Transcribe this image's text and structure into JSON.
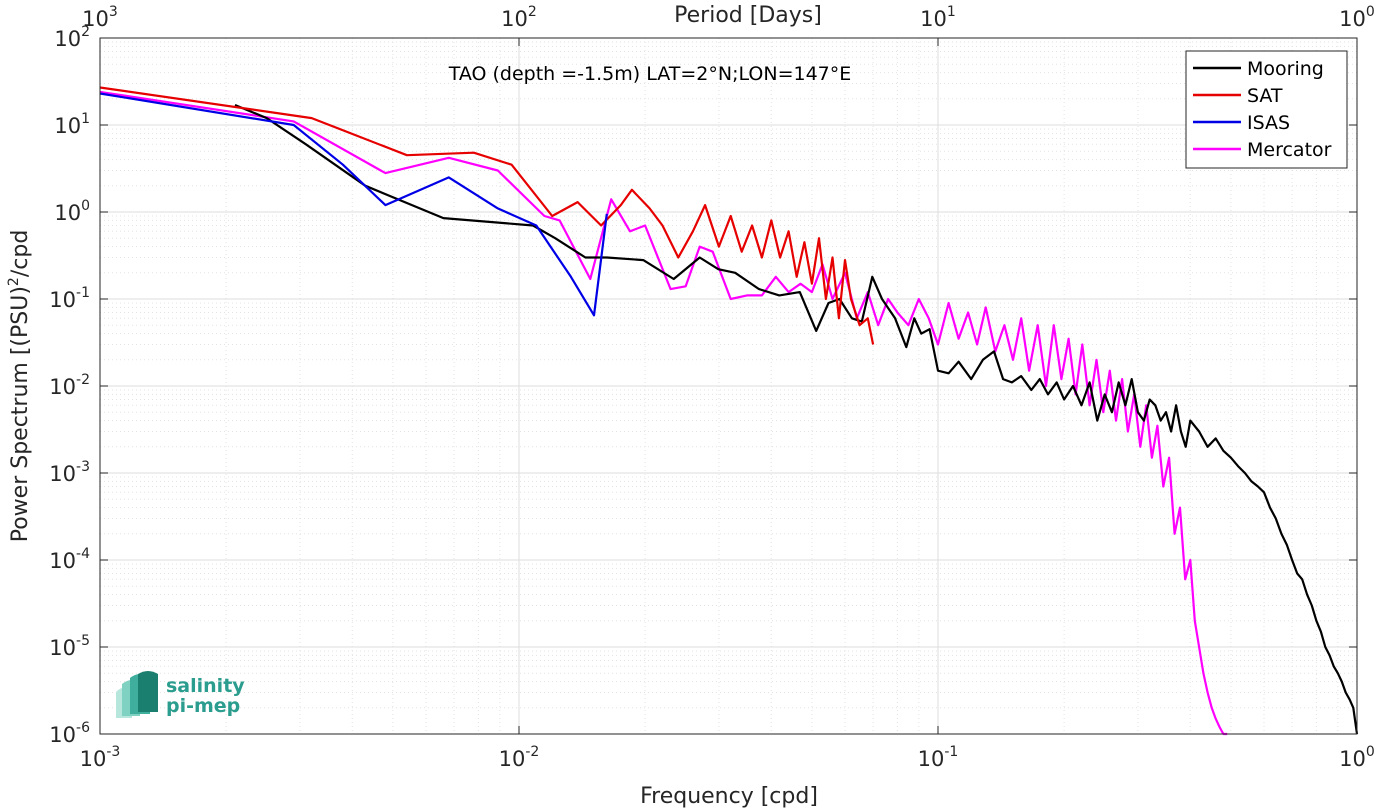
{
  "chart_data": {
    "type": "line",
    "title": "TAO (depth =-1.5m) LAT=2°N;LON=147°E",
    "xlabel": "Frequency [cpd]",
    "ylabel": "Power Spectrum [(PSU)",
    "ylabel_sup": "2",
    "ylabel_suffix": "/cpd",
    "top_xlabel": "Period [Days]",
    "x_scale": "log",
    "y_scale": "log",
    "xlim": [
      0.001,
      1
    ],
    "ylim": [
      1e-06,
      100
    ],
    "grid": true,
    "legend_position": "top-right",
    "x_ticks": [
      {
        "value": 0.001,
        "base": "10",
        "exp": "-3"
      },
      {
        "value": 0.01,
        "base": "10",
        "exp": "-2"
      },
      {
        "value": 0.1,
        "base": "10",
        "exp": "-1"
      },
      {
        "value": 1,
        "base": "10",
        "exp": "0"
      }
    ],
    "y_ticks": [
      {
        "value": 100,
        "base": "10",
        "exp": "2"
      },
      {
        "value": 10,
        "base": "10",
        "exp": "1"
      },
      {
        "value": 1,
        "base": "10",
        "exp": "0"
      },
      {
        "value": 0.1,
        "base": "10",
        "exp": "-1"
      },
      {
        "value": 0.01,
        "base": "10",
        "exp": "-2"
      },
      {
        "value": 0.001,
        "base": "10",
        "exp": "-3"
      },
      {
        "value": 0.0001,
        "base": "10",
        "exp": "-4"
      },
      {
        "value": 1e-05,
        "base": "10",
        "exp": "-5"
      },
      {
        "value": 1e-06,
        "base": "10",
        "exp": "-6"
      }
    ],
    "top_ticks": [
      {
        "value": 0.001,
        "base": "10",
        "exp": "3"
      },
      {
        "value": 0.01,
        "base": "10",
        "exp": "2"
      },
      {
        "value": 0.1,
        "base": "10",
        "exp": "1"
      },
      {
        "value": 1,
        "base": "10",
        "exp": "0"
      }
    ],
    "series": [
      {
        "name": "Mooring",
        "color": "#000000",
        "x": [
          0.0021,
          0.0025,
          0.0031,
          0.0043,
          0.0066,
          0.0108,
          0.0122,
          0.0144,
          0.0162,
          0.0198,
          0.0234,
          0.027,
          0.0299,
          0.0328,
          0.0374,
          0.0418,
          0.0468,
          0.0512,
          0.0548,
          0.0582,
          0.0623,
          0.0658,
          0.0697,
          0.0735,
          0.079,
          0.084,
          0.0878,
          0.0912,
          0.0955,
          0.1,
          0.106,
          0.112,
          0.12,
          0.128,
          0.136,
          0.143,
          0.15,
          0.158,
          0.167,
          0.175,
          0.183,
          0.192,
          0.2,
          0.21,
          0.22,
          0.23,
          0.24,
          0.25,
          0.26,
          0.27,
          0.28,
          0.29,
          0.3,
          0.31,
          0.32,
          0.33,
          0.34,
          0.35,
          0.36,
          0.37,
          0.38,
          0.39,
          0.4,
          0.42,
          0.44,
          0.46,
          0.48,
          0.5,
          0.52,
          0.54,
          0.56,
          0.58,
          0.6,
          0.62,
          0.64,
          0.66,
          0.68,
          0.7,
          0.72,
          0.74,
          0.76,
          0.78,
          0.8,
          0.82,
          0.84,
          0.86,
          0.88,
          0.9,
          0.92,
          0.94,
          0.96,
          0.98,
          1.0
        ],
        "y": [
          17,
          12,
          6,
          2,
          0.85,
          0.7,
          0.5,
          0.3,
          0.3,
          0.28,
          0.17,
          0.3,
          0.22,
          0.2,
          0.13,
          0.11,
          0.12,
          0.043,
          0.09,
          0.1,
          0.06,
          0.055,
          0.18,
          0.1,
          0.06,
          0.028,
          0.06,
          0.04,
          0.045,
          0.015,
          0.014,
          0.019,
          0.012,
          0.02,
          0.025,
          0.012,
          0.011,
          0.013,
          0.009,
          0.012,
          0.008,
          0.011,
          0.007,
          0.01,
          0.006,
          0.011,
          0.004,
          0.008,
          0.005,
          0.011,
          0.006,
          0.012,
          0.005,
          0.004,
          0.007,
          0.006,
          0.004,
          0.005,
          0.003,
          0.006,
          0.003,
          0.002,
          0.004,
          0.003,
          0.002,
          0.0025,
          0.0018,
          0.0015,
          0.0012,
          0.001,
          0.0008,
          0.0007,
          0.0006,
          0.0004,
          0.0003,
          0.0002,
          0.00015,
          0.0001,
          7e-05,
          6e-05,
          4e-05,
          3e-05,
          2e-05,
          1.5e-05,
          1e-05,
          8e-06,
          6e-06,
          5e-06,
          4e-06,
          3e-06,
          2.5e-06,
          2e-06,
          1e-06
        ]
      },
      {
        "name": "SAT",
        "color": "#e60000",
        "x": [
          0.001,
          0.0032,
          0.0054,
          0.0078,
          0.0096,
          0.012,
          0.0138,
          0.0157,
          0.0175,
          0.0186,
          0.0205,
          0.022,
          0.024,
          0.026,
          0.0278,
          0.03,
          0.032,
          0.034,
          0.036,
          0.038,
          0.04,
          0.042,
          0.044,
          0.046,
          0.048,
          0.05,
          0.052,
          0.054,
          0.056,
          0.058,
          0.06,
          0.062,
          0.065,
          0.068,
          0.07
        ],
        "y": [
          27,
          12,
          4.5,
          4.8,
          3.5,
          0.9,
          1.3,
          0.7,
          1.2,
          1.8,
          1.1,
          0.7,
          0.3,
          0.6,
          1.2,
          0.4,
          0.9,
          0.35,
          0.7,
          0.3,
          0.8,
          0.3,
          0.6,
          0.18,
          0.45,
          0.15,
          0.5,
          0.1,
          0.3,
          0.06,
          0.28,
          0.1,
          0.05,
          0.06,
          0.03
        ]
      },
      {
        "name": "ISAS",
        "color": "#0000e6",
        "x": [
          0.001,
          0.0029,
          0.0038,
          0.0048,
          0.0068,
          0.0089,
          0.011,
          0.0133,
          0.0151,
          0.0162
        ],
        "y": [
          23,
          10,
          3.5,
          1.2,
          2.5,
          1.1,
          0.7,
          0.18,
          0.065,
          0.95
        ]
      },
      {
        "name": "Mercator",
        "color": "#ff00ff",
        "x": [
          0.001,
          0.0029,
          0.0048,
          0.0068,
          0.0089,
          0.0115,
          0.0125,
          0.0148,
          0.0166,
          0.0184,
          0.02,
          0.023,
          0.025,
          0.027,
          0.029,
          0.032,
          0.035,
          0.038,
          0.041,
          0.044,
          0.047,
          0.05,
          0.053,
          0.056,
          0.06,
          0.064,
          0.068,
          0.072,
          0.076,
          0.08,
          0.085,
          0.09,
          0.095,
          0.1,
          0.106,
          0.112,
          0.118,
          0.124,
          0.13,
          0.137,
          0.144,
          0.151,
          0.158,
          0.165,
          0.173,
          0.181,
          0.189,
          0.197,
          0.205,
          0.213,
          0.221,
          0.23,
          0.239,
          0.248,
          0.257,
          0.266,
          0.275,
          0.284,
          0.294,
          0.304,
          0.314,
          0.324,
          0.334,
          0.345,
          0.356,
          0.367,
          0.378,
          0.389,
          0.4,
          0.41,
          0.42,
          0.43,
          0.44,
          0.45,
          0.46,
          0.47,
          0.48,
          0.49
        ],
        "y": [
          24,
          11,
          2.8,
          4.2,
          3,
          0.9,
          0.8,
          0.17,
          1.4,
          0.6,
          0.7,
          0.13,
          0.14,
          0.4,
          0.35,
          0.1,
          0.11,
          0.11,
          0.18,
          0.12,
          0.15,
          0.12,
          0.25,
          0.1,
          0.2,
          0.06,
          0.12,
          0.05,
          0.1,
          0.07,
          0.05,
          0.1,
          0.06,
          0.03,
          0.09,
          0.035,
          0.07,
          0.03,
          0.08,
          0.025,
          0.05,
          0.02,
          0.06,
          0.015,
          0.05,
          0.01,
          0.05,
          0.012,
          0.035,
          0.008,
          0.03,
          0.006,
          0.02,
          0.005,
          0.015,
          0.004,
          0.012,
          0.003,
          0.008,
          0.002,
          0.006,
          0.0015,
          0.0035,
          0.0007,
          0.0015,
          0.0002,
          0.0004,
          6e-05,
          0.0001,
          2e-05,
          1e-05,
          5e-06,
          3e-06,
          2e-06,
          1.5e-06,
          1.2e-06,
          1e-06,
          1e-06
        ]
      }
    ]
  },
  "logo": {
    "line1": "salinity",
    "line2": "pi-mep",
    "colors": [
      "#1a7f6f",
      "#3fae9c",
      "#7fd1c1",
      "#b7e6dc"
    ]
  }
}
